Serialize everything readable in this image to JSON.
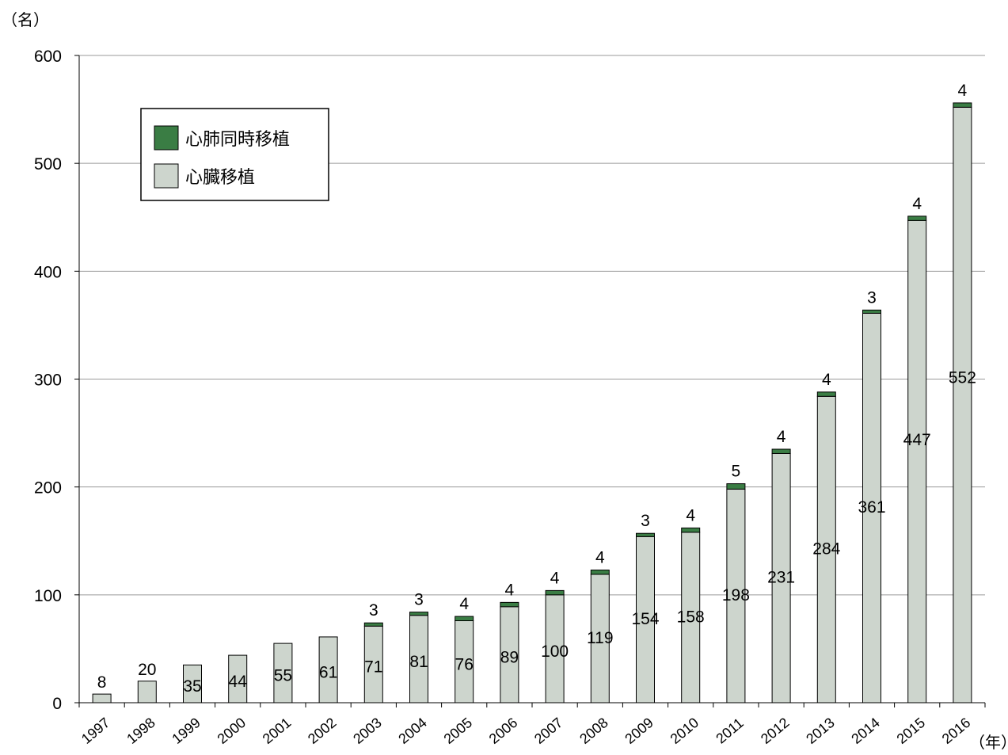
{
  "chart_data": {
    "type": "bar",
    "stacked": true,
    "y_unit_label": "（名）",
    "x_unit_label": "（年）",
    "ylim": [
      0,
      600
    ],
    "yticks": [
      "0",
      "100",
      "200",
      "300",
      "400",
      "500",
      "600"
    ],
    "grid": true,
    "legend_position": "top-left",
    "categories": [
      "1997",
      "1998",
      "1999",
      "2000",
      "2001",
      "2002",
      "2003",
      "2004",
      "2005",
      "2006",
      "2007",
      "2008",
      "2009",
      "2010",
      "2011",
      "2012",
      "2013",
      "2014",
      "2015",
      "2016"
    ],
    "series": [
      {
        "name": "心臓移植",
        "color": "#cdd5cd",
        "values": [
          8,
          20,
          35,
          44,
          55,
          61,
          71,
          81,
          76,
          89,
          100,
          119,
          154,
          158,
          198,
          231,
          284,
          361,
          447,
          552
        ],
        "labels": [
          "8",
          "20",
          "35",
          "44",
          "55",
          "61",
          "71",
          "81",
          "76",
          "89",
          "100",
          "119",
          "154",
          "158",
          "198",
          "231",
          "284",
          "361",
          "447",
          "552"
        ]
      },
      {
        "name": "心肺同時移植",
        "color": "#3a7d44",
        "values": [
          0,
          0,
          0,
          0,
          0,
          0,
          3,
          3,
          4,
          4,
          4,
          4,
          3,
          4,
          5,
          4,
          4,
          3,
          4,
          4
        ],
        "labels": [
          "",
          "",
          "",
          "",
          "",
          "",
          "3",
          "3",
          "4",
          "4",
          "4",
          "4",
          "3",
          "4",
          "5",
          "4",
          "4",
          "3",
          "4",
          "4"
        ]
      }
    ],
    "legend_order": [
      1,
      0
    ]
  }
}
